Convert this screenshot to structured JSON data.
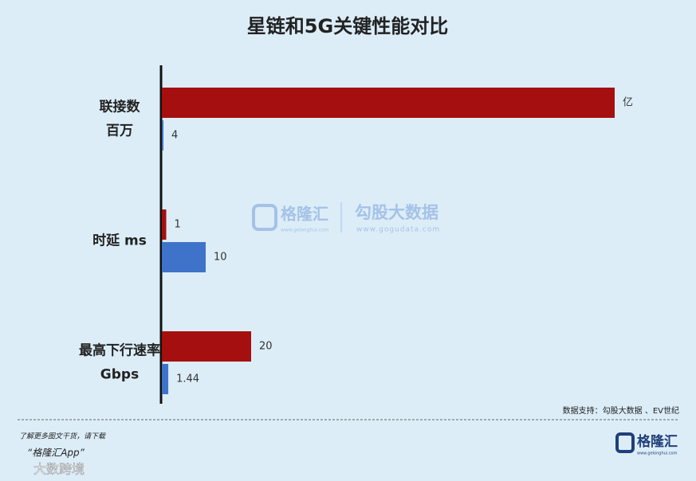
{
  "chart_data": {
    "type": "hbar-grouped",
    "title": "星链和5G关键性能对比",
    "categories": [
      [
        "联接数",
        "百万"
      ],
      [
        "时延 ms"
      ],
      [
        "最高下行速率",
        "Gbps"
      ]
    ],
    "series": [
      {
        "color": "#a50f0f",
        "values": [
          100000000,
          1,
          20
        ],
        "value_labels": [
          "亿",
          "1",
          "20"
        ]
      },
      {
        "color": "#3f73c9",
        "values": [
          4,
          10,
          1.44
        ]
      }
    ],
    "source": "数据支持：勾股大数据 、EV世纪",
    "footer": {
      "line1": "了解更多图文干货，请下载",
      "line2": "“格隆汇App”",
      "corner": "大数跨境",
      "logo": "格隆汇",
      "logo_url": "www.gelonghui.com"
    },
    "watermark": {
      "left": "格隆汇",
      "left_url": "www.gelonghui.com",
      "right": "勾股大数据",
      "right_url": "www.gogudata.com"
    }
  }
}
